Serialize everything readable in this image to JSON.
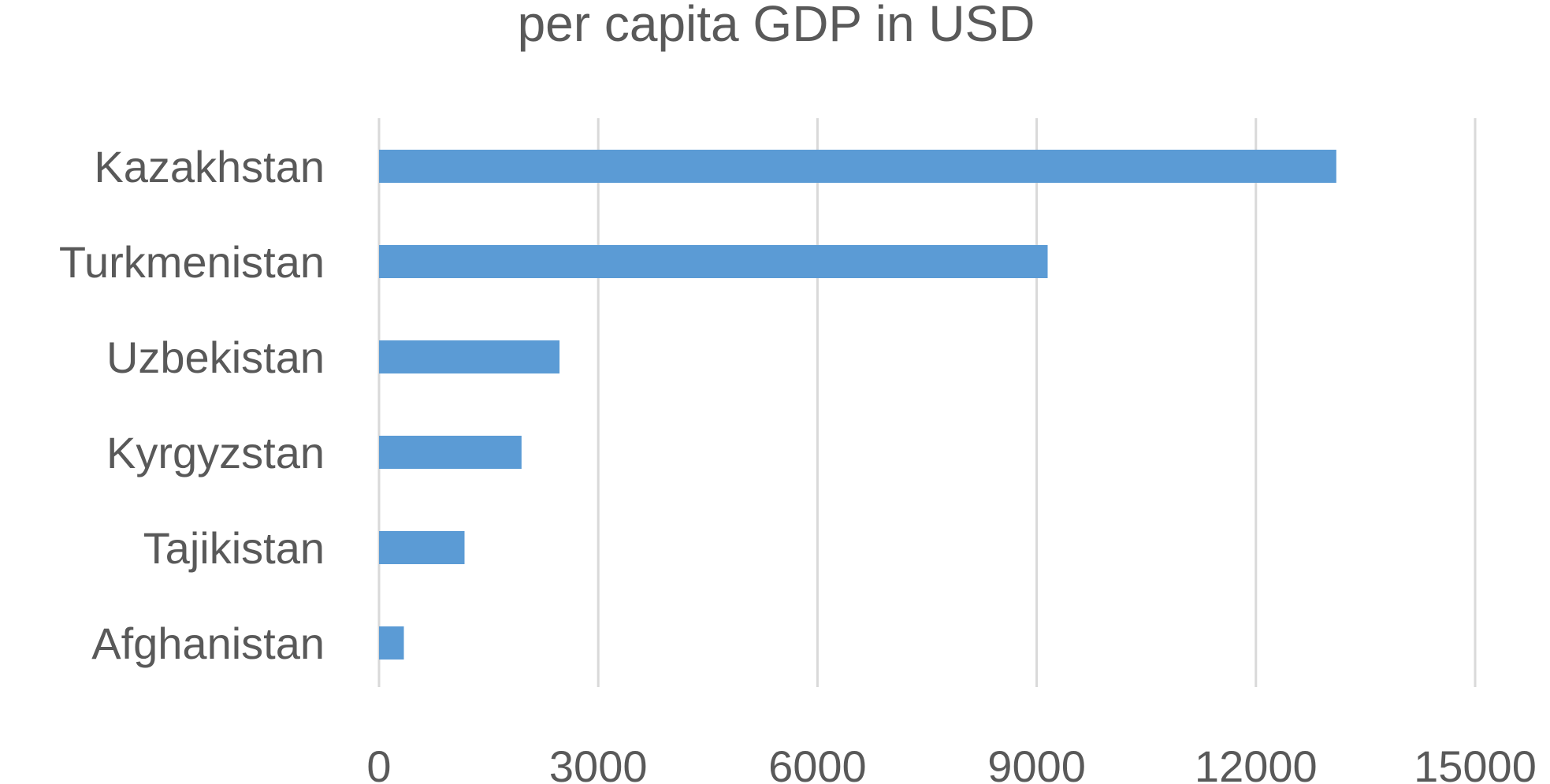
{
  "chart_data": {
    "type": "bar",
    "orientation": "horizontal",
    "title": "per capita GDP in USD",
    "categories": [
      "Kazakhstan",
      "Turkmenistan",
      "Uzbekistan",
      "Kyrgyzstan",
      "Tajikistan",
      "Afghanistan"
    ],
    "values": [
      13100,
      9150,
      2470,
      1950,
      1170,
      340
    ],
    "xlim": [
      0,
      15000
    ],
    "xticks": [
      "0",
      "3000",
      "6000",
      "9000",
      "12000",
      "15000"
    ],
    "grid": true,
    "legend": "none",
    "colors": {
      "bar": "#5b9bd5",
      "grid": "#d9d9d9",
      "text": "#595959"
    }
  }
}
